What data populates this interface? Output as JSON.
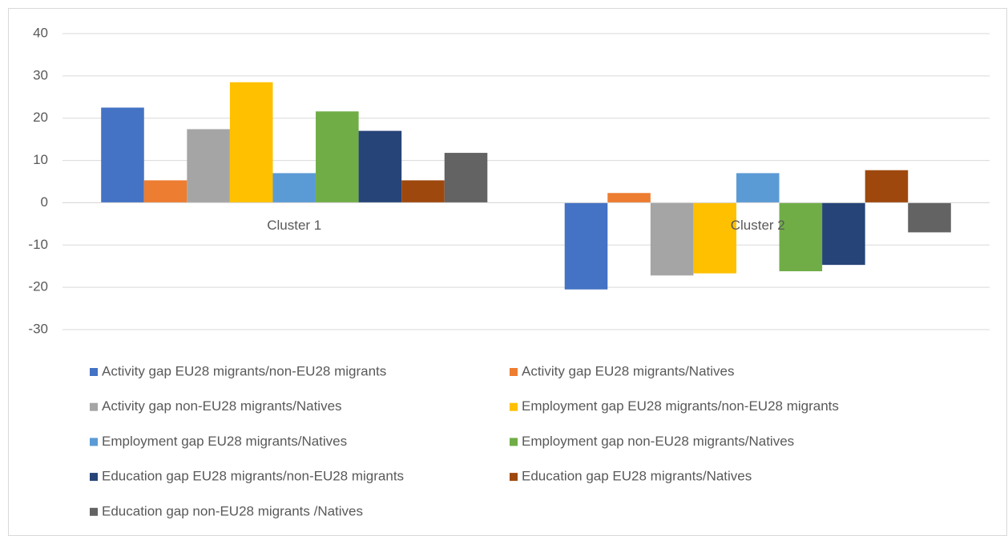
{
  "chart_data": {
    "type": "bar",
    "categories": [
      "Cluster 1",
      "Cluster 2"
    ],
    "series": [
      {
        "name": "Activity gap EU28 migrants/non-EU28 migrants",
        "color": "#4472c4",
        "values": [
          22.5,
          -20.5
        ]
      },
      {
        "name": "Activity gap EU28 migrants/Natives",
        "color": "#ed7d31",
        "values": [
          5.3,
          2.3
        ]
      },
      {
        "name": "Activity gap non-EU28 migrants/Natives",
        "color": "#a5a5a5",
        "values": [
          17.4,
          -17.2
        ]
      },
      {
        "name": "Employment gap EU28 migrants/non-EU28 migrants",
        "color": "#ffc000",
        "values": [
          28.5,
          -16.7
        ]
      },
      {
        "name": "Employment gap EU28 migrants/Natives",
        "color": "#5b9bd5",
        "values": [
          7.0,
          7.0
        ]
      },
      {
        "name": "Employment gap non-EU28 migrants/Natives",
        "color": "#70ad47",
        "values": [
          21.6,
          -16.2
        ]
      },
      {
        "name": "Education gap EU28 migrants/non-EU28 migrants",
        "color": "#264478",
        "values": [
          17.0,
          -14.7
        ]
      },
      {
        "name": "Education gap EU28 migrants/Natives",
        "color": "#9e480e",
        "values": [
          5.3,
          7.7
        ]
      },
      {
        "name": "Education gap non-EU28 migrants /Natives",
        "color": "#636363",
        "values": [
          11.8,
          -7.0
        ]
      }
    ],
    "ylim": [
      -30,
      40
    ],
    "yticks": [
      -30,
      -20,
      -10,
      0,
      10,
      20,
      30,
      40
    ],
    "grid": true,
    "legend": "bottom"
  }
}
